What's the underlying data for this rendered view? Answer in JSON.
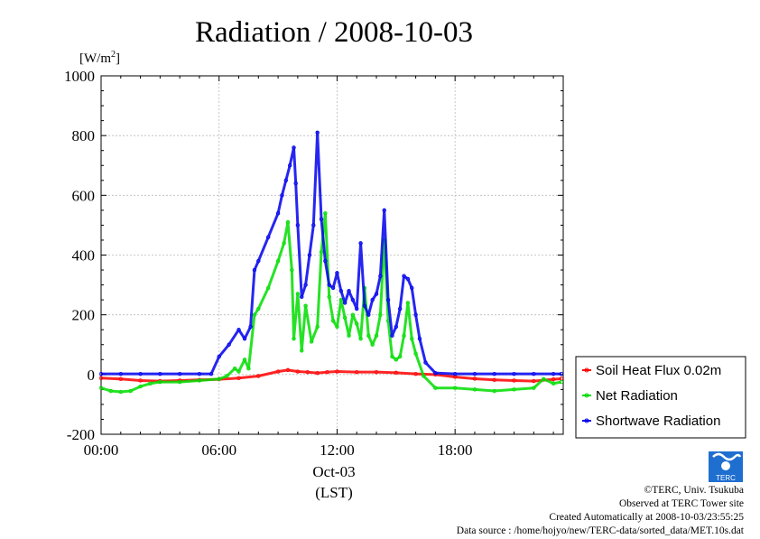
{
  "chart_data": {
    "type": "line",
    "title": "Radiation / 2008-10-03",
    "ylabel": "[W/m",
    "ylabel_sup": "2",
    "ylabel_close": "]",
    "xlabel_date": "Oct-03",
    "xlabel_tz": "(LST)",
    "ylim": [
      -200,
      1000
    ],
    "xlim": [
      0,
      23.5
    ],
    "yticks": [
      -200,
      0,
      200,
      400,
      600,
      800,
      1000
    ],
    "xticks": [
      {
        "value": 0,
        "label": "00:00"
      },
      {
        "value": 6,
        "label": "06:00"
      },
      {
        "value": 12,
        "label": "12:00"
      },
      {
        "value": 18,
        "label": "18:00"
      }
    ],
    "legend_position": "right-bottom-outside",
    "series": [
      {
        "name": "Soil Heat Flux 0.02m",
        "color": "#ff0000",
        "x": [
          0,
          1,
          2,
          3,
          4,
          5,
          6,
          7,
          8,
          9,
          9.5,
          10,
          10.5,
          11,
          11.5,
          12,
          13,
          14,
          15,
          16,
          17,
          18,
          19,
          20,
          21,
          22,
          23,
          23.4
        ],
        "y": [
          -12,
          -15,
          -20,
          -22,
          -20,
          -18,
          -16,
          -12,
          -5,
          10,
          15,
          10,
          8,
          5,
          8,
          10,
          8,
          8,
          6,
          2,
          0,
          -8,
          -14,
          -18,
          -20,
          -22,
          -16,
          -14
        ]
      },
      {
        "name": "Net Radiation",
        "color": "#00dd00",
        "x": [
          0,
          0.5,
          1,
          1.5,
          2,
          2.5,
          3,
          4,
          5,
          6,
          6.4,
          6.8,
          7,
          7.3,
          7.5,
          7.8,
          8,
          8.5,
          9,
          9.3,
          9.5,
          9.7,
          9.8,
          10,
          10.2,
          10.4,
          10.7,
          11,
          11.2,
          11.4,
          11.6,
          11.8,
          12,
          12.2,
          12.4,
          12.6,
          12.8,
          13,
          13.2,
          13.4,
          13.6,
          13.8,
          14,
          14.2,
          14.4,
          14.6,
          14.8,
          15,
          15.2,
          15.4,
          15.6,
          15.8,
          16,
          16.4,
          17,
          18,
          19,
          20,
          21,
          22,
          22.5,
          23,
          23.4
        ],
        "y": [
          -45,
          -55,
          -58,
          -55,
          -40,
          -30,
          -25,
          -25,
          -20,
          -15,
          -5,
          20,
          10,
          50,
          20,
          200,
          220,
          290,
          380,
          440,
          510,
          350,
          120,
          270,
          80,
          230,
          110,
          160,
          410,
          540,
          260,
          180,
          160,
          250,
          190,
          130,
          200,
          170,
          120,
          290,
          130,
          100,
          130,
          200,
          450,
          180,
          60,
          50,
          60,
          130,
          240,
          120,
          70,
          -5,
          -45,
          -45,
          -50,
          -55,
          -50,
          -45,
          -15,
          -30,
          -25
        ]
      },
      {
        "name": "Shortwave Radiation",
        "color": "#0000ee",
        "x": [
          0,
          1,
          2,
          3,
          4,
          5,
          5.6,
          6,
          6.5,
          7,
          7.3,
          7.6,
          7.8,
          8,
          8.5,
          9,
          9.2,
          9.4,
          9.6,
          9.8,
          9.9,
          10,
          10.2,
          10.4,
          10.6,
          10.8,
          11,
          11.2,
          11.4,
          11.6,
          11.8,
          12,
          12.2,
          12.4,
          12.6,
          12.8,
          13,
          13.2,
          13.4,
          13.6,
          13.8,
          14,
          14.2,
          14.4,
          14.6,
          14.8,
          15,
          15.2,
          15.4,
          15.6,
          15.8,
          16,
          16.2,
          16.5,
          17,
          18,
          19,
          20,
          21,
          22,
          23,
          23.4
        ],
        "y": [
          2,
          2,
          2,
          2,
          2,
          2,
          2,
          60,
          100,
          150,
          120,
          160,
          350,
          380,
          460,
          540,
          600,
          650,
          700,
          760,
          640,
          500,
          260,
          300,
          400,
          500,
          810,
          520,
          380,
          300,
          290,
          340,
          280,
          240,
          280,
          250,
          220,
          440,
          230,
          200,
          250,
          270,
          330,
          550,
          250,
          130,
          160,
          220,
          330,
          320,
          290,
          200,
          120,
          40,
          5,
          2,
          2,
          2,
          2,
          2,
          2,
          2
        ]
      }
    ]
  },
  "footer": {
    "copyright": "©TERC, Univ. Tsukuba",
    "observed": "Observed at TERC Tower site",
    "created": "Created Automatically at 2008-10-03/23:55:25",
    "source": "Data source : /home/hojyo/new/TERC-data/sorted_data/MET.10s.dat",
    "logo_text": "TERC"
  }
}
